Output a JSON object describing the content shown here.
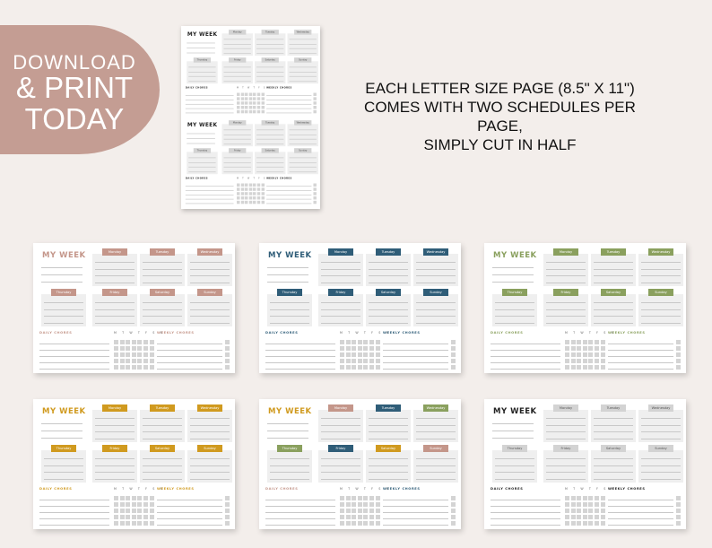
{
  "promo": {
    "line1": "DOWNLOAD",
    "line2": "& PRINT",
    "line3": "TODAY",
    "blob_color": "#c49d93"
  },
  "description": [
    "EACH LETTER SIZE PAGE (8.5\" X 11\")",
    "COMES WITH TWO SCHEDULES PER PAGE,",
    "SIMPLY CUT IN HALF"
  ],
  "planner": {
    "title": "MY WEEK",
    "days": [
      "Monday",
      "Tuesday",
      "Wednesday",
      "Thursday",
      "Friday",
      "Saturday",
      "Sunday"
    ],
    "daily_chores": "DAILY CHORES",
    "weekday_initials": "M T W T F S S",
    "weekly_chores": "WEEKLY CHORES"
  },
  "colors": {
    "pink": "#c4968a",
    "blue": "#2f5d78",
    "green": "#8aa05e",
    "orange": "#d09a1f",
    "gray": "#d3d3d3",
    "black": "#222222"
  },
  "variants": [
    {
      "name": "gray-print",
      "title_color": "black",
      "day_colors": [
        "gray",
        "gray",
        "gray",
        "gray",
        "gray",
        "gray",
        "gray"
      ],
      "section_color": "black"
    },
    {
      "name": "pink",
      "title_color": "pink",
      "day_colors": [
        "pink",
        "pink",
        "pink",
        "pink",
        "pink",
        "pink",
        "pink"
      ],
      "section_color": "pink"
    },
    {
      "name": "blue",
      "title_color": "blue",
      "day_colors": [
        "blue",
        "blue",
        "blue",
        "blue",
        "blue",
        "blue",
        "blue"
      ],
      "section_color": "blue"
    },
    {
      "name": "green",
      "title_color": "green",
      "day_colors": [
        "green",
        "green",
        "green",
        "green",
        "green",
        "green",
        "green"
      ],
      "section_color": "green"
    },
    {
      "name": "orange",
      "title_color": "orange",
      "day_colors": [
        "orange",
        "orange",
        "orange",
        "orange",
        "orange",
        "orange",
        "orange"
      ],
      "section_color": "orange"
    },
    {
      "name": "mixed",
      "title_color": "orange",
      "day_colors": [
        "pink",
        "blue",
        "green",
        "green",
        "blue",
        "orange",
        "pink"
      ],
      "section_color": "pink",
      "section2_color": "blue"
    },
    {
      "name": "gray",
      "title_color": "black",
      "day_colors": [
        "gray",
        "gray",
        "gray",
        "gray",
        "gray",
        "gray",
        "gray"
      ],
      "section_color": "black"
    }
  ]
}
